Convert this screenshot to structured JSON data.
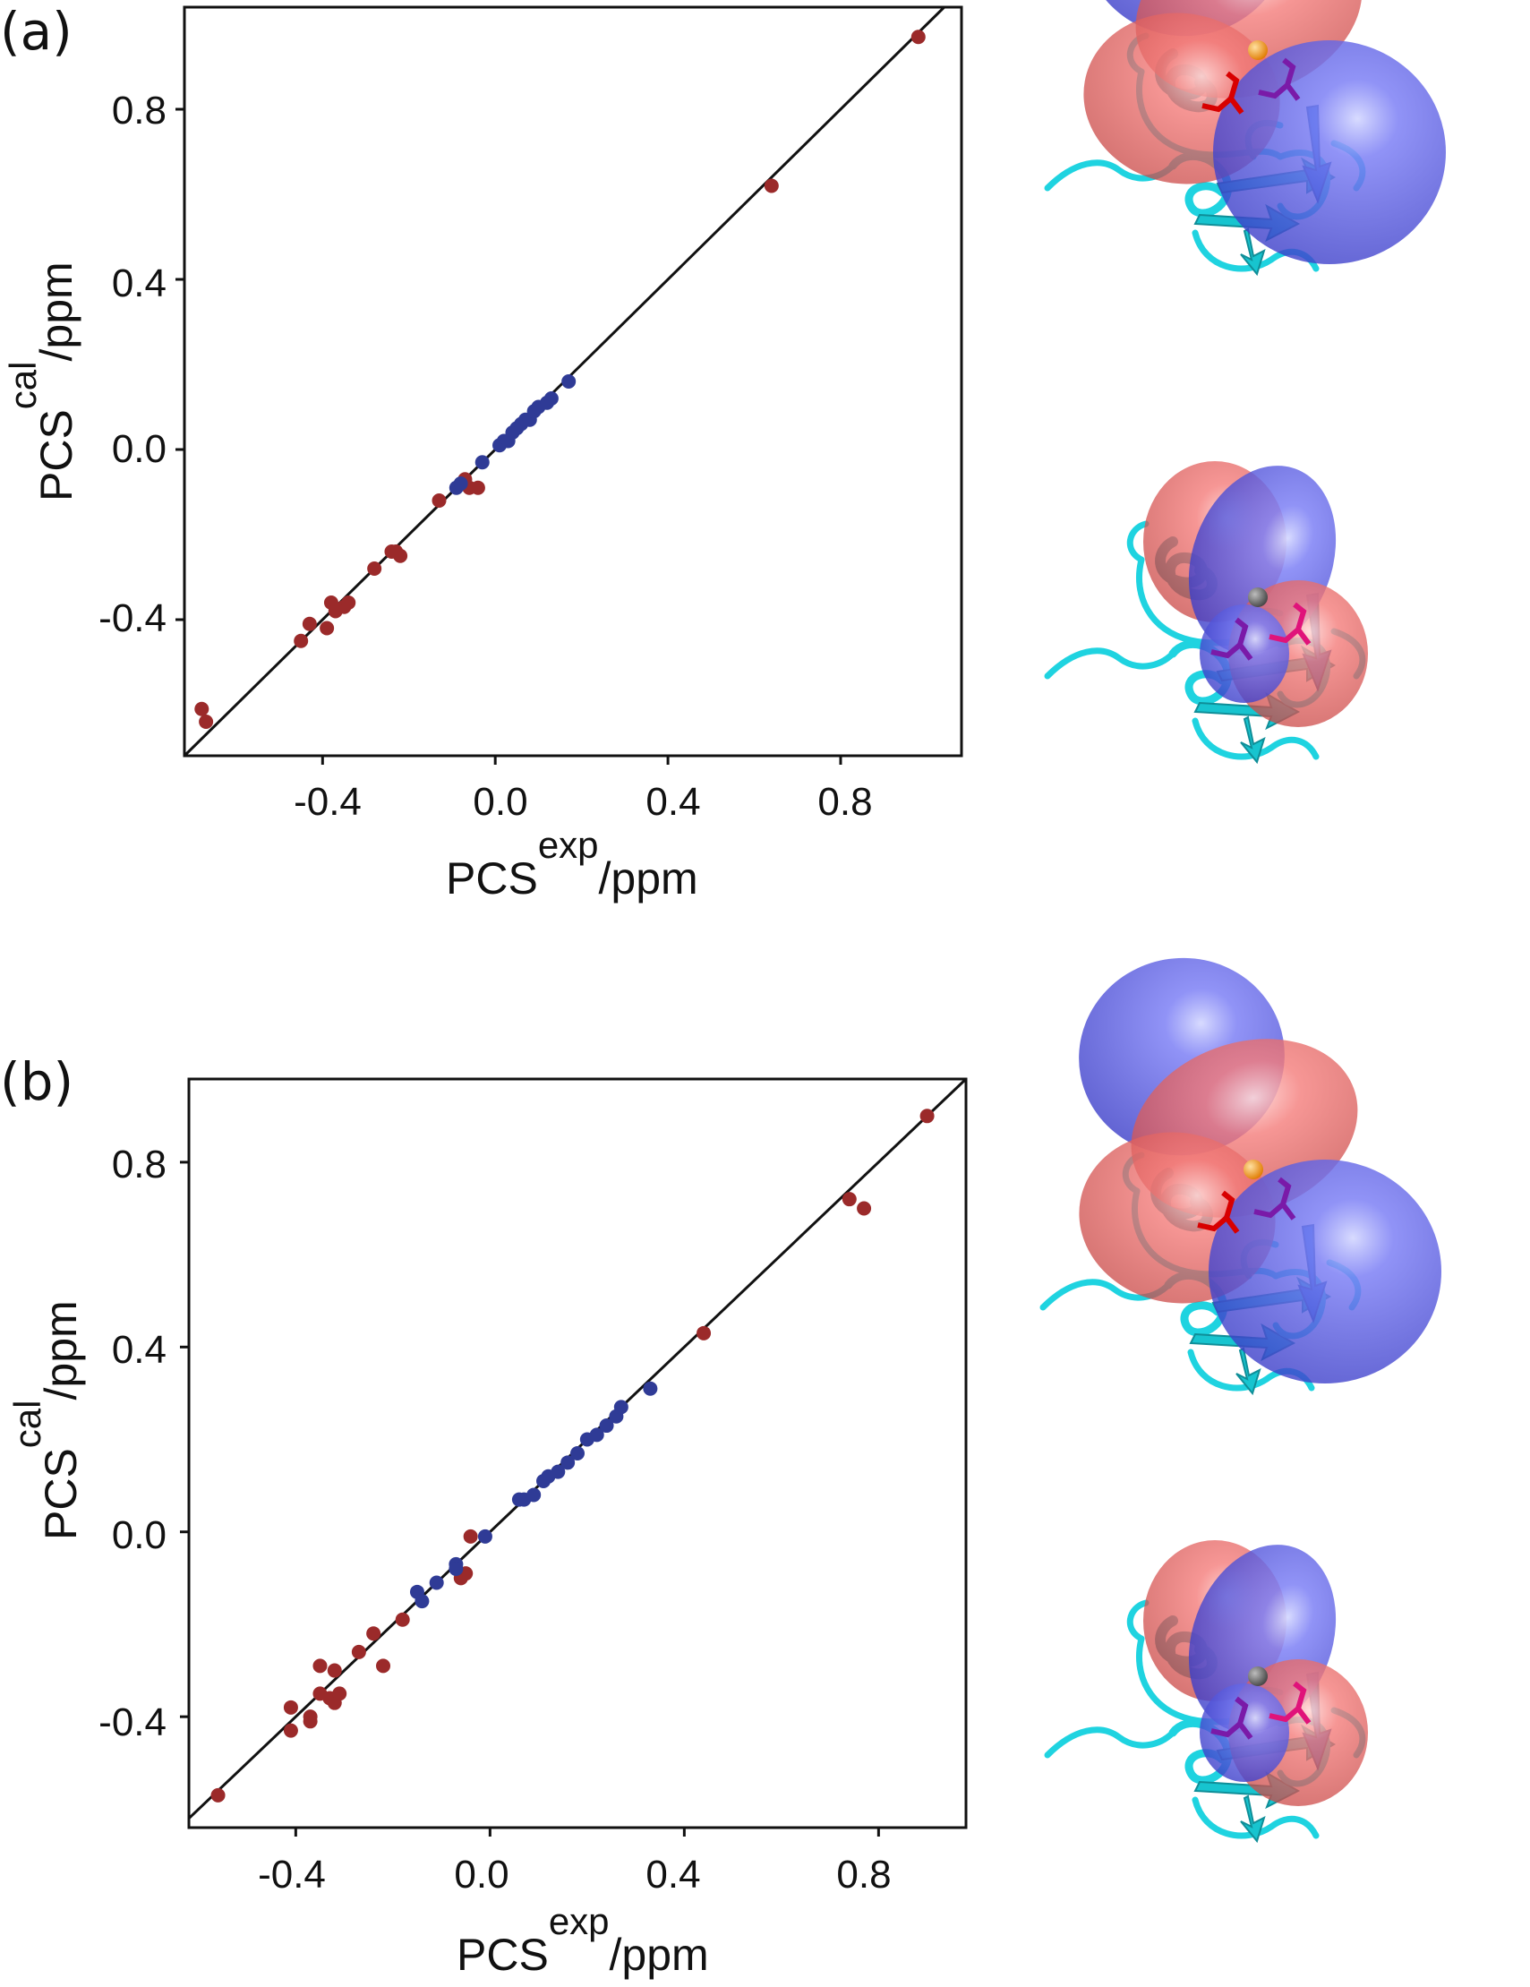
{
  "colors": {
    "red_points": "#9b2a2a",
    "blue_points": "#2f3b96",
    "lobe_blue": "#5a5cf0",
    "lobe_red": "#f06a68",
    "protein": "#1fd3e0",
    "metal_orange": "#f39a16",
    "metal_grey": "#6b6b6b"
  },
  "chart_data": [
    {
      "type": "scatter",
      "panel": "(a)",
      "xlabel": {
        "base": "PCS",
        "sup": "exp",
        "unit": "/ppm"
      },
      "ylabel": {
        "base": "PCS",
        "sup": "cal",
        "unit": "/ppm"
      },
      "xlim": [
        -0.72,
        1.08
      ],
      "ylim": [
        -0.72,
        1.04
      ],
      "xticks": [
        "-0.4",
        "0.0",
        "0.4",
        "0.8"
      ],
      "yticks": [
        "-0.4",
        "0.0",
        "0.4",
        "0.8"
      ],
      "diagonal": true,
      "series": [
        {
          "color": "red",
          "points": [
            [
              -0.68,
              -0.61
            ],
            [
              -0.67,
              -0.64
            ],
            [
              -0.45,
              -0.45
            ],
            [
              -0.43,
              -0.41
            ],
            [
              -0.39,
              -0.42
            ],
            [
              -0.38,
              -0.36
            ],
            [
              -0.37,
              -0.38
            ],
            [
              -0.35,
              -0.37
            ],
            [
              -0.34,
              -0.36
            ],
            [
              -0.28,
              -0.28
            ],
            [
              -0.24,
              -0.24
            ],
            [
              -0.23,
              -0.24
            ],
            [
              -0.22,
              -0.25
            ],
            [
              -0.13,
              -0.12
            ],
            [
              -0.07,
              -0.07
            ],
            [
              -0.06,
              -0.09
            ],
            [
              -0.04,
              -0.09
            ],
            [
              0.64,
              0.62
            ],
            [
              0.98,
              0.97
            ]
          ]
        },
        {
          "color": "blue",
          "points": [
            [
              -0.09,
              -0.09
            ],
            [
              -0.08,
              -0.08
            ],
            [
              -0.03,
              -0.03
            ],
            [
              0.01,
              0.01
            ],
            [
              0.02,
              0.02
            ],
            [
              0.03,
              0.02
            ],
            [
              0.04,
              0.04
            ],
            [
              0.05,
              0.05
            ],
            [
              0.06,
              0.06
            ],
            [
              0.07,
              0.07
            ],
            [
              0.08,
              0.07
            ],
            [
              0.09,
              0.09
            ],
            [
              0.1,
              0.1
            ],
            [
              0.12,
              0.11
            ],
            [
              0.13,
              0.12
            ],
            [
              0.17,
              0.16
            ]
          ]
        }
      ]
    },
    {
      "type": "scatter",
      "panel": "(b)",
      "xlabel": {
        "base": "PCS",
        "sup": "exp",
        "unit": "/ppm"
      },
      "ylabel": {
        "base": "PCS",
        "sup": "cal",
        "unit": "/ppm"
      },
      "xlim": [
        -0.62,
        0.98
      ],
      "ylim": [
        -0.64,
        0.98
      ],
      "xticks": [
        "-0.4",
        "0.0",
        "0.4",
        "0.8"
      ],
      "yticks": [
        "-0.4",
        "0.0",
        "0.4",
        "0.8"
      ],
      "diagonal": true,
      "series": [
        {
          "color": "red",
          "points": [
            [
              -0.56,
              -0.57
            ],
            [
              -0.41,
              -0.43
            ],
            [
              -0.41,
              -0.38
            ],
            [
              -0.37,
              -0.4
            ],
            [
              -0.37,
              -0.41
            ],
            [
              -0.35,
              -0.35
            ],
            [
              -0.35,
              -0.29
            ],
            [
              -0.33,
              -0.36
            ],
            [
              -0.32,
              -0.3
            ],
            [
              -0.32,
              -0.37
            ],
            [
              -0.31,
              -0.35
            ],
            [
              -0.27,
              -0.26
            ],
            [
              -0.24,
              -0.22
            ],
            [
              -0.22,
              -0.29
            ],
            [
              -0.18,
              -0.19
            ],
            [
              -0.06,
              -0.1
            ],
            [
              -0.05,
              -0.09
            ],
            [
              -0.04,
              -0.01
            ],
            [
              0.44,
              0.43
            ],
            [
              0.74,
              0.72
            ],
            [
              0.77,
              0.7
            ],
            [
              0.9,
              0.9
            ]
          ]
        },
        {
          "color": "blue",
          "points": [
            [
              -0.15,
              -0.13
            ],
            [
              -0.14,
              -0.15
            ],
            [
              -0.11,
              -0.11
            ],
            [
              -0.07,
              -0.07
            ],
            [
              -0.07,
              -0.08
            ],
            [
              -0.01,
              -0.01
            ],
            [
              0.06,
              0.07
            ],
            [
              0.07,
              0.07
            ],
            [
              0.09,
              0.08
            ],
            [
              0.11,
              0.11
            ],
            [
              0.12,
              0.12
            ],
            [
              0.14,
              0.13
            ],
            [
              0.16,
              0.15
            ],
            [
              0.18,
              0.17
            ],
            [
              0.2,
              0.2
            ],
            [
              0.22,
              0.21
            ],
            [
              0.24,
              0.23
            ],
            [
              0.26,
              0.25
            ],
            [
              0.27,
              0.27
            ],
            [
              0.33,
              0.31
            ]
          ]
        }
      ]
    }
  ],
  "structures": [
    {
      "panel": "(a)",
      "metal": "orange",
      "label": "metal-ion-orange"
    },
    {
      "panel": "(a)",
      "metal": "grey",
      "label": "metal-ion-grey"
    },
    {
      "panel": "(b)",
      "metal": "orange",
      "label": "metal-ion-orange"
    },
    {
      "panel": "(b)",
      "metal": "grey",
      "label": "metal-ion-grey"
    }
  ]
}
